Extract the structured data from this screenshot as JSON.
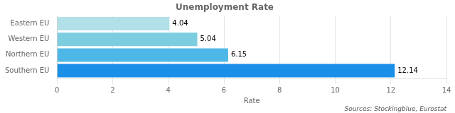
{
  "chart_data": {
    "type": "bar",
    "orientation": "horizontal",
    "title": "Unemployment Rate",
    "xlabel": "Rate",
    "categories": [
      "Eastern EU",
      "Western EU",
      "Northern EU",
      "Southern EU"
    ],
    "values": [
      4.04,
      5.04,
      6.15,
      12.14
    ],
    "colors": [
      "#b2e0e8",
      "#7dcde0",
      "#4db8e8",
      "#1a8fe8"
    ],
    "xlim": [
      0,
      14
    ],
    "xticks": [
      0,
      2,
      4,
      6,
      8,
      10,
      12,
      14
    ],
    "grid": true,
    "data_labels": true,
    "annotations": [
      "Sources: Stockingblue, Eurostat"
    ]
  }
}
